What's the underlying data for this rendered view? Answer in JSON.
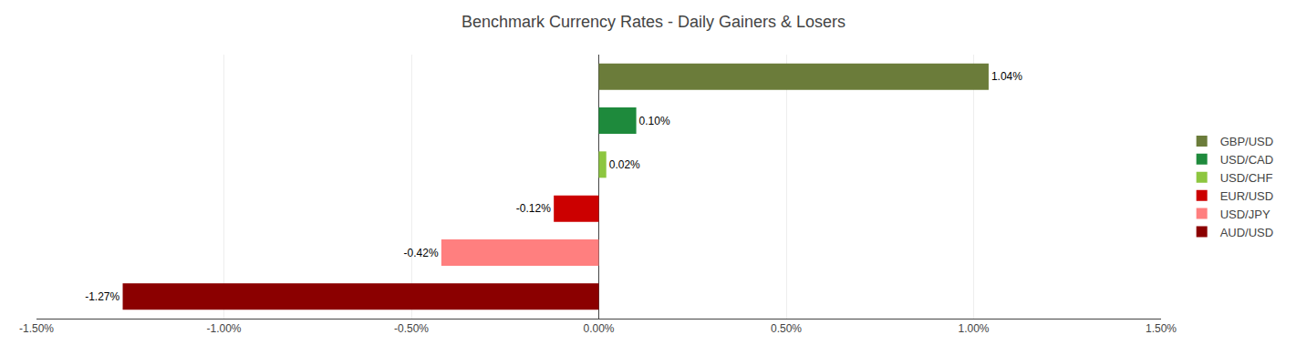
{
  "chart_data": {
    "type": "bar",
    "title": "Benchmark Currency Rates - Daily Gainers & Losers",
    "orientation": "horizontal",
    "categories": [
      "GBP/USD",
      "USD/CAD",
      "USD/CHF",
      "EUR/USD",
      "USD/JPY",
      "AUD/USD"
    ],
    "values": [
      1.04,
      0.1,
      0.02,
      -0.12,
      -0.42,
      -1.27
    ],
    "value_labels": [
      "1.04%",
      "0.10%",
      "0.02%",
      "-0.12%",
      "-0.42%",
      "-1.27%"
    ],
    "colors": [
      "#6b7c3a",
      "#1e8a3c",
      "#8dc63f",
      "#cc0000",
      "#ff7f7f",
      "#8b0000"
    ],
    "data_labels": true,
    "xlim": [
      -1.5,
      1.5
    ],
    "xticks": [
      {
        "value": -1.5,
        "label": "-1.50%"
      },
      {
        "value": -1.0,
        "label": "-1.00%"
      },
      {
        "value": -0.5,
        "label": "-0.50%"
      },
      {
        "value": 0.0,
        "label": "0.00%"
      },
      {
        "value": 0.5,
        "label": "0.50%"
      },
      {
        "value": 1.0,
        "label": "1.00%"
      },
      {
        "value": 1.5,
        "label": "1.50%"
      }
    ],
    "grid": true,
    "legend": "right",
    "tick_labels": "x"
  }
}
